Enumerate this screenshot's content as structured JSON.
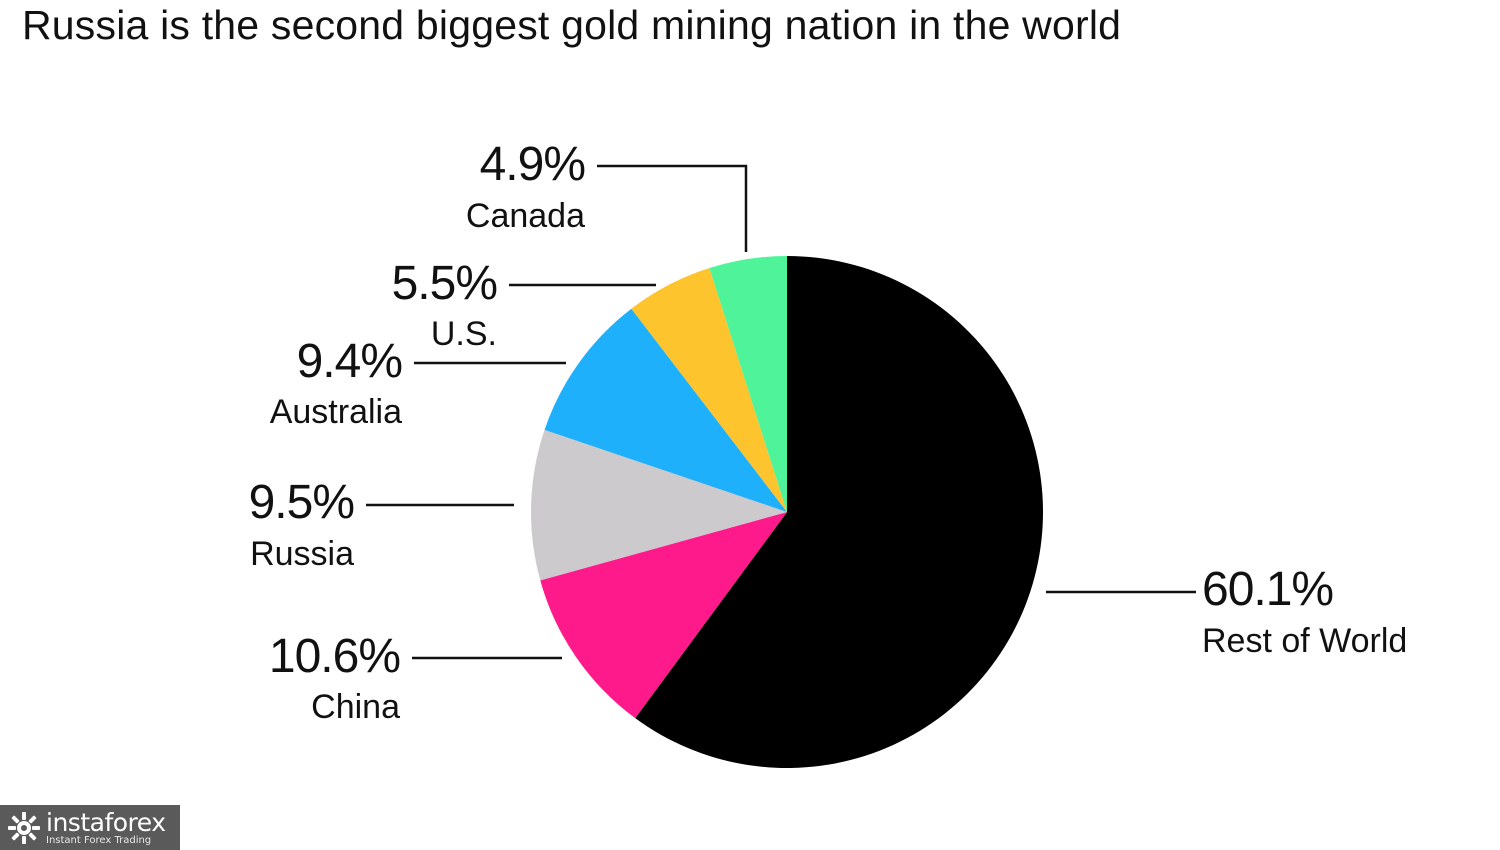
{
  "title": "Russia is the second biggest gold mining nation in the world",
  "chart_data": {
    "type": "pie",
    "title": "Russia is the second biggest gold mining nation in the world",
    "start": "top, clockwise",
    "slices": [
      {
        "label": "Rest of World",
        "value": 60.1,
        "value_label": "60.1%",
        "color": "#000000"
      },
      {
        "label": "China",
        "value": 10.6,
        "value_label": "10.6%",
        "color": "#ff1a8c"
      },
      {
        "label": "Russia",
        "value": 9.5,
        "value_label": "9.5%",
        "color": "#cccacd"
      },
      {
        "label": "Australia",
        "value": 9.4,
        "value_label": "9.4%",
        "color": "#1eb0fa"
      },
      {
        "label": "U.S.",
        "value": 5.5,
        "value_label": "5.5%",
        "color": "#fec42e"
      },
      {
        "label": "Canada",
        "value": 4.9,
        "value_label": "4.9%",
        "color": "#4ef39a"
      }
    ]
  },
  "watermark": {
    "name": "instaforex",
    "tagline": "Instant Forex Trading",
    "icon": "gear-people-icon",
    "background": "#5a5a5a"
  }
}
